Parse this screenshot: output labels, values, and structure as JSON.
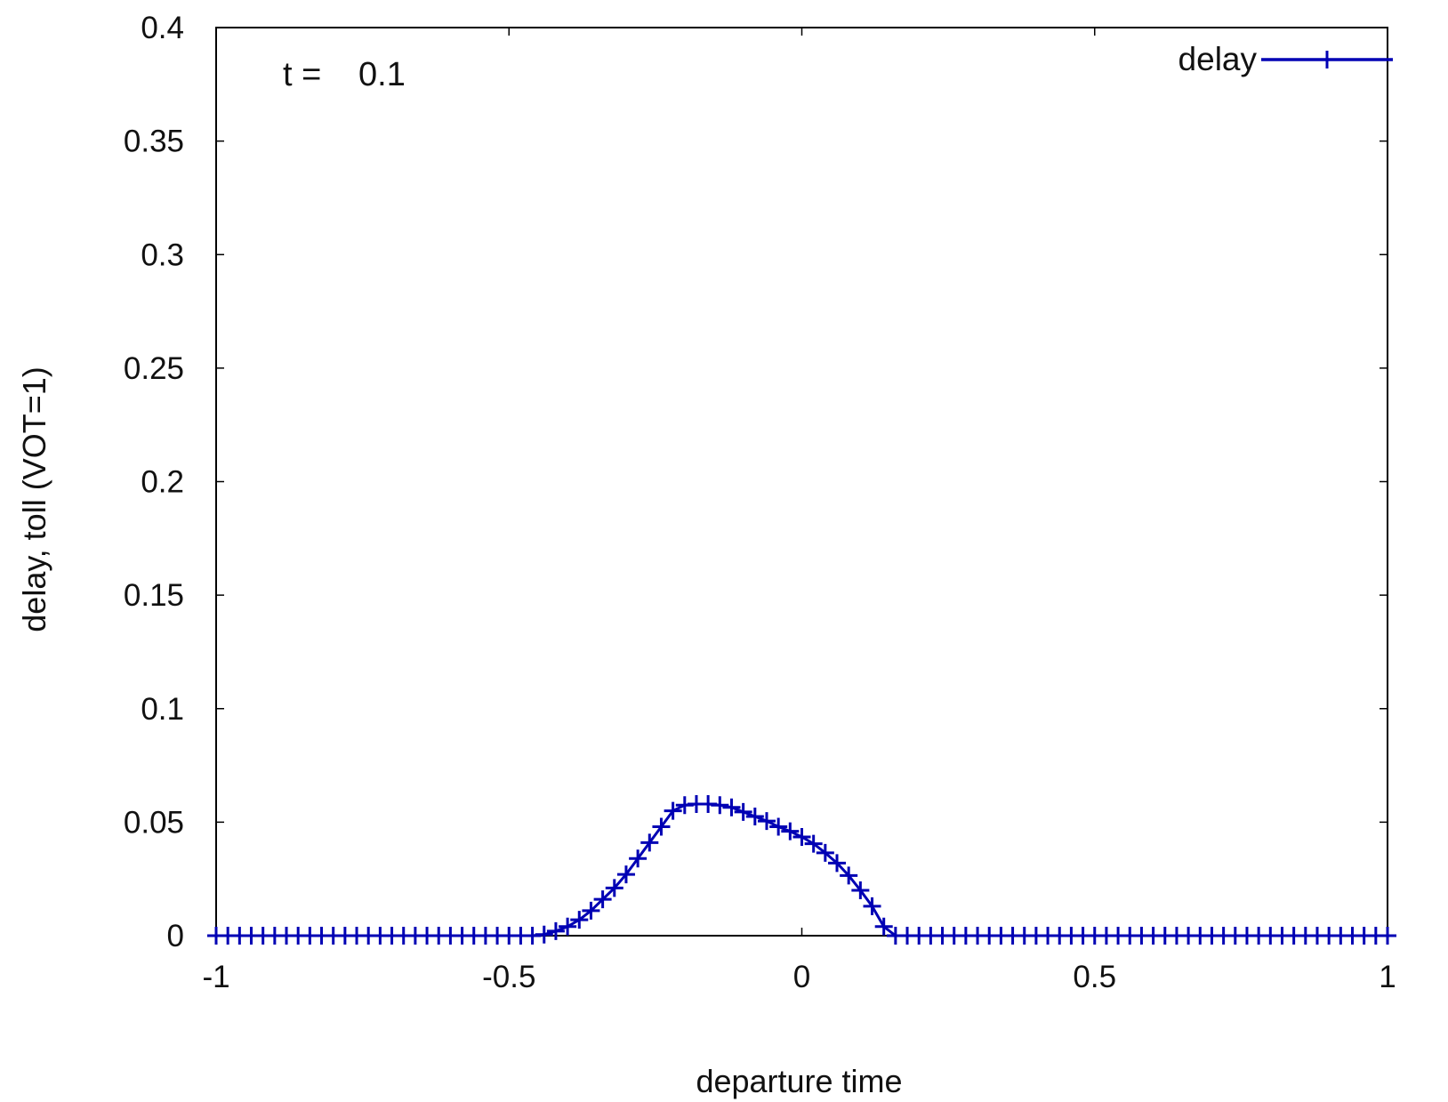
{
  "chart_data": {
    "type": "line",
    "xlabel": "departure time",
    "ylabel": "delay, toll (VOT=1)",
    "annotation": {
      "label": "t =",
      "value": "0.1"
    },
    "xlim": [
      -1,
      1
    ],
    "ylim": [
      0,
      0.4
    ],
    "xticks": [
      -1,
      -0.5,
      0,
      0.5,
      1
    ],
    "xtick_labels": [
      "-1",
      "-0.5",
      "0",
      "0.5",
      "1"
    ],
    "yticks": [
      0,
      0.05,
      0.1,
      0.15,
      0.2,
      0.25,
      0.3,
      0.35,
      0.4
    ],
    "ytick_labels": [
      "0",
      "0.05",
      "0.1",
      "0.15",
      "0.2",
      "0.25",
      "0.3",
      "0.35",
      "0.4"
    ],
    "grid": false,
    "legend_position": "top-right",
    "series": [
      {
        "name": "delay",
        "color": "#0000b4",
        "marker": "plus",
        "x": [
          -1,
          -0.98,
          -0.96,
          -0.94,
          -0.92,
          -0.9,
          -0.88,
          -0.86,
          -0.84,
          -0.82,
          -0.8,
          -0.78,
          -0.76,
          -0.74,
          -0.72,
          -0.7,
          -0.68,
          -0.66,
          -0.64,
          -0.62,
          -0.6,
          -0.58,
          -0.56,
          -0.54,
          -0.52,
          -0.5,
          -0.48,
          -0.46,
          -0.44,
          -0.42,
          -0.4,
          -0.38,
          -0.36,
          -0.34,
          -0.32,
          -0.3,
          -0.28,
          -0.26,
          -0.24,
          -0.22,
          -0.2,
          -0.18,
          -0.16,
          -0.14,
          -0.12,
          -0.1,
          -0.08,
          -0.06,
          -0.04,
          -0.02,
          0,
          0.02,
          0.04,
          0.06,
          0.08,
          0.1,
          0.12,
          0.14,
          0.16,
          0.18,
          0.2,
          0.22,
          0.24,
          0.26,
          0.28,
          0.3,
          0.32,
          0.34,
          0.36,
          0.38,
          0.4,
          0.42,
          0.44,
          0.46,
          0.48,
          0.5,
          0.52,
          0.54,
          0.56,
          0.58,
          0.6,
          0.62,
          0.64,
          0.66,
          0.68,
          0.7,
          0.72,
          0.74,
          0.76,
          0.78,
          0.8,
          0.82,
          0.84,
          0.86,
          0.88,
          0.9,
          0.92,
          0.94,
          0.96,
          0.98,
          1
        ],
        "y": [
          0,
          0,
          0,
          0,
          0,
          0,
          0,
          0,
          0,
          0,
          0,
          0,
          0,
          0,
          0,
          0,
          0,
          0,
          0,
          0,
          0,
          0,
          0,
          0,
          0,
          0,
          0,
          0,
          0.0005,
          0.002,
          0.004,
          0.007,
          0.011,
          0.016,
          0.021,
          0.027,
          0.034,
          0.041,
          0.048,
          0.055,
          0.0575,
          0.058,
          0.058,
          0.0575,
          0.0565,
          0.0545,
          0.0525,
          0.0505,
          0.048,
          0.046,
          0.0435,
          0.0405,
          0.0365,
          0.032,
          0.0265,
          0.02,
          0.013,
          0.004,
          0,
          0,
          0,
          0,
          0,
          0,
          0,
          0,
          0,
          0,
          0,
          0,
          0,
          0,
          0,
          0,
          0,
          0,
          0,
          0,
          0,
          0,
          0,
          0,
          0,
          0,
          0,
          0,
          0,
          0,
          0,
          0,
          0,
          0,
          0,
          0,
          0,
          0,
          0,
          0,
          0,
          0,
          0
        ]
      }
    ]
  }
}
